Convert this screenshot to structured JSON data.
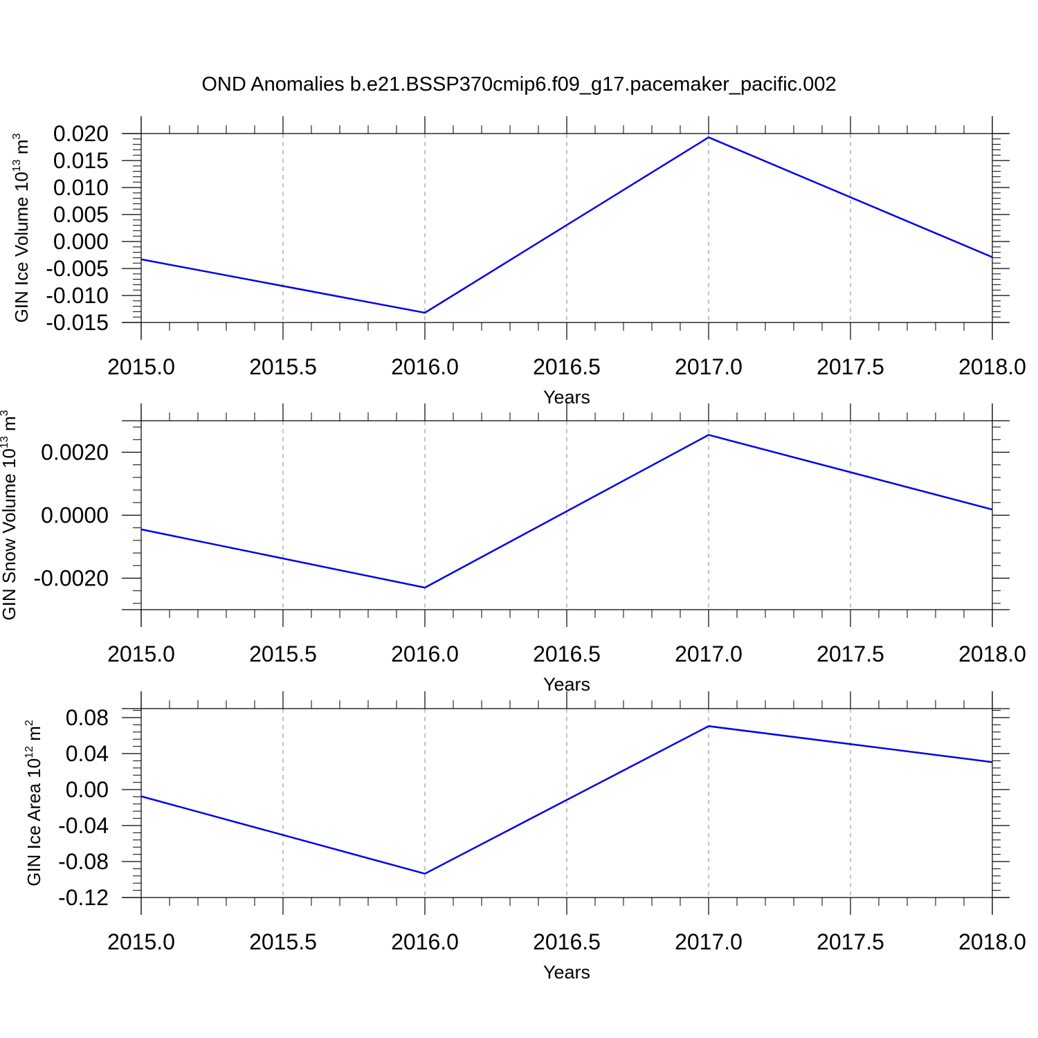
{
  "title": "OND Anomalies b.e21.BSSP370cmip6.f09_g17.pacemaker_pacific.002",
  "colors": {
    "series": "#0000ee",
    "axis": "#000000",
    "grid": "#888888"
  },
  "chart_data": [
    {
      "type": "line",
      "ylabel": {
        "text": "GIN Ice Volume 10",
        "sup": "13",
        "unit": "m",
        "unit_sup": "3"
      },
      "xlabel": "Years",
      "x": [
        2015,
        2016,
        2017,
        2018
      ],
      "y": [
        -0.0033,
        -0.0132,
        0.0193,
        -0.0029
      ],
      "xlim": [
        2015,
        2018
      ],
      "ylim": [
        -0.015,
        0.02
      ],
      "xticks": [
        "2015.0",
        "2015.5",
        "2016.0",
        "2016.5",
        "2017.0",
        "2017.5",
        "2018.0"
      ],
      "yticks": [
        "0.020",
        "0.015",
        "0.010",
        "0.005",
        "0.000",
        "-0.005",
        "-0.010",
        "-0.015"
      ],
      "grid": "vertical dashed at major ticks"
    },
    {
      "type": "line",
      "ylabel": {
        "text": "GIN Snow Volume 10",
        "sup": "13",
        "unit": "m",
        "unit_sup": "3"
      },
      "xlabel": "Years",
      "x": [
        2015,
        2016,
        2017,
        2018
      ],
      "y": [
        -0.00045,
        -0.0023,
        0.00255,
        0.00018
      ],
      "xlim": [
        2015,
        2018
      ],
      "ylim": [
        -0.003,
        0.003
      ],
      "xticks": [
        "2015.0",
        "2015.5",
        "2016.0",
        "2016.5",
        "2017.0",
        "2017.5",
        "2018.0"
      ],
      "yticks": [
        "0.0020",
        "0.0000",
        "-0.0020"
      ],
      "grid": "vertical dashed at major ticks"
    },
    {
      "type": "line",
      "ylabel": {
        "text": "GIN Ice Area 10",
        "sup": "12",
        "unit": "m",
        "unit_sup": "2"
      },
      "xlabel": "Years",
      "x": [
        2015,
        2016,
        2017,
        2018
      ],
      "y": [
        -0.0075,
        -0.0935,
        0.0705,
        0.0305
      ],
      "xlim": [
        2015,
        2018
      ],
      "ylim": [
        -0.12,
        0.09
      ],
      "xticks": [
        "2015.0",
        "2015.5",
        "2016.0",
        "2016.5",
        "2017.0",
        "2017.5",
        "2018.0"
      ],
      "yticks": [
        "0.08",
        "0.04",
        "0.00",
        "-0.04",
        "-0.08",
        "-0.12"
      ],
      "grid": "vertical dashed at major ticks"
    }
  ]
}
